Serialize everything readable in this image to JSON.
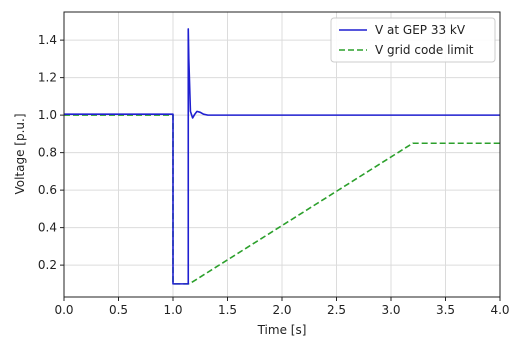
{
  "chart_data": {
    "type": "line",
    "xlabel": "Time [s]",
    "ylabel": "Voltage [p.u.]",
    "xlim": [
      0.0,
      4.0
    ],
    "ylim": [
      0.03,
      1.55
    ],
    "x_ticks": [
      "0.0",
      "0.5",
      "1.0",
      "1.5",
      "2.0",
      "2.5",
      "3.0",
      "3.5",
      "4.0"
    ],
    "y_ticks": [
      "0.2",
      "0.4",
      "0.6",
      "0.8",
      "1.0",
      "1.2",
      "1.4"
    ],
    "grid": true,
    "legend_position": "top-right",
    "series": [
      {
        "name": "V at GEP 33 kV",
        "color": "#1f1fd0",
        "style": "solid",
        "x": [
          0.0,
          1.0,
          1.0,
          1.14,
          1.14,
          1.145,
          1.16,
          1.18,
          1.2,
          1.22,
          1.25,
          1.28,
          1.32,
          1.4,
          1.6,
          4.0
        ],
        "y": [
          1.005,
          1.005,
          0.1,
          0.1,
          1.46,
          1.3,
          1.02,
          0.985,
          1.005,
          1.02,
          1.015,
          1.005,
          1.0,
          1.0,
          1.0,
          1.0
        ]
      },
      {
        "name": "V grid code limit",
        "color": "#2ca02c",
        "style": "dashed",
        "x": [
          0.0,
          1.0,
          1.0,
          1.15,
          3.2,
          4.0
        ],
        "y": [
          1.0,
          1.0,
          0.1,
          0.1,
          0.85,
          0.85
        ]
      }
    ]
  }
}
